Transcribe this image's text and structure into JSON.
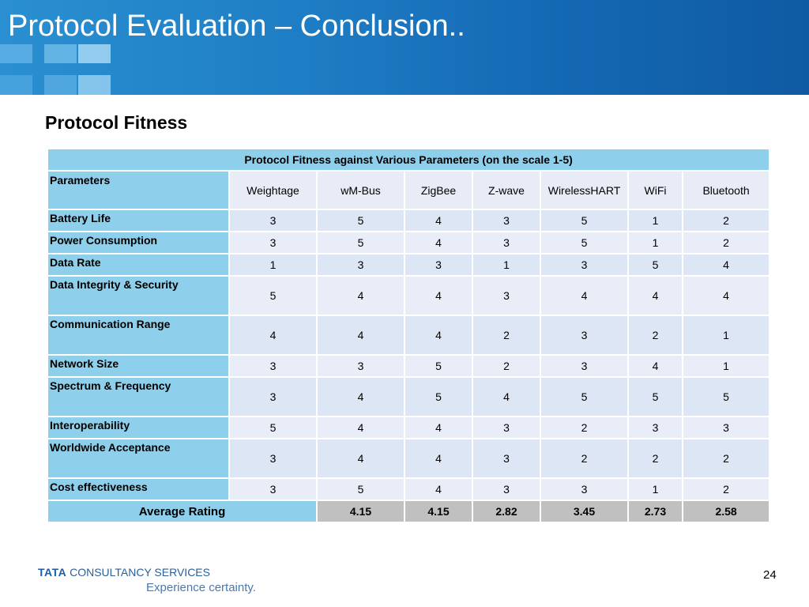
{
  "slide": {
    "title": "Protocol Evaluation – Conclusion..",
    "subtitle": "Protocol Fitness",
    "page_number": "24"
  },
  "table": {
    "caption": "Protocol Fitness against Various Parameters (on the scale 1-5)",
    "parameters_header": "Parameters",
    "columns": [
      "Weightage",
      "wM-Bus",
      "ZigBee",
      "Z-wave",
      "WirelessHART",
      "WiFi",
      "Bluetooth"
    ],
    "rows": [
      {
        "label": "Battery Life",
        "values": [
          "3",
          "5",
          "4",
          "3",
          "5",
          "1",
          "2"
        ]
      },
      {
        "label": "Power Consumption",
        "values": [
          "3",
          "5",
          "4",
          "3",
          "5",
          "1",
          "2"
        ]
      },
      {
        "label": "Data Rate",
        "values": [
          "1",
          "3",
          "3",
          "1",
          "3",
          "5",
          "4"
        ]
      },
      {
        "label": "Data Integrity & Security",
        "values": [
          "5",
          "4",
          "4",
          "3",
          "4",
          "4",
          "4"
        ]
      },
      {
        "label": "Communication Range",
        "values": [
          "4",
          "4",
          "4",
          "2",
          "3",
          "2",
          "1"
        ]
      },
      {
        "label": "Network Size",
        "values": [
          "3",
          "3",
          "5",
          "2",
          "3",
          "4",
          "1"
        ]
      },
      {
        "label": "Spectrum & Frequency",
        "values": [
          "3",
          "4",
          "5",
          "4",
          "5",
          "5",
          "5"
        ]
      },
      {
        "label": "Interoperability",
        "values": [
          "5",
          "4",
          "4",
          "3",
          "2",
          "3",
          "3"
        ]
      },
      {
        "label": "Worldwide Acceptance",
        "values": [
          "3",
          "4",
          "4",
          "3",
          "2",
          "2",
          "2"
        ]
      },
      {
        "label": "Cost effectiveness",
        "values": [
          "3",
          "5",
          "4",
          "3",
          "3",
          "1",
          "2"
        ]
      }
    ],
    "average_label": "Average Rating",
    "averages": [
      "4.15",
      "4.15",
      "2.82",
      "3.45",
      "2.73",
      "2.58"
    ]
  },
  "footer": {
    "brand_tata": "TATA",
    "brand_rest": "CONSULTANCY SERVICES",
    "tagline": "Experience certainty."
  },
  "colors": {
    "banner": "#1f7fc6",
    "header_cell": "#8ed0ec",
    "data_cell": "#dce6f4",
    "average_cell": "#c0c0c0"
  }
}
